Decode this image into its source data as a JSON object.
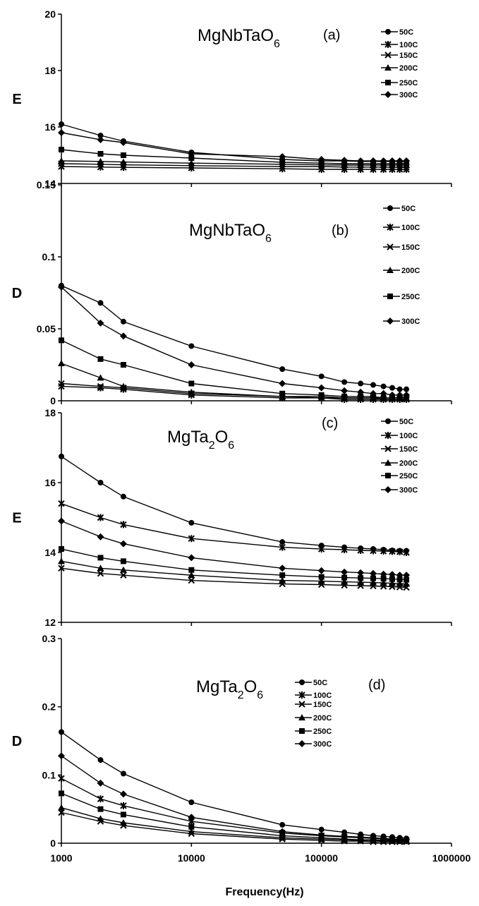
{
  "chart_data": [
    {
      "type": "line",
      "title": "MgNbTaO6",
      "title_parts": [
        "MgNbTaO",
        "6"
      ],
      "panel_label": "(a)",
      "ylabel": "E",
      "xlabel": "",
      "xscale": "log",
      "xlim": [
        1000,
        1000000
      ],
      "ylim": [
        14,
        20
      ],
      "yticks": [
        14,
        16,
        18,
        20
      ],
      "ytick_labels": [
        "14",
        "16",
        "18",
        "20"
      ],
      "x": [
        1000,
        2000,
        3000,
        10000,
        50000,
        100000,
        150000,
        200000,
        250000,
        300000,
        350000,
        400000,
        450000
      ],
      "series": [
        {
          "name": "50C",
          "marker": "circle",
          "values": [
            16.1,
            15.7,
            15.5,
            15.1,
            14.85,
            14.8,
            14.8,
            14.78,
            14.78,
            14.78,
            14.78,
            14.78,
            14.78
          ]
        },
        {
          "name": "100C",
          "marker": "asterisk",
          "values": [
            14.6,
            14.58,
            14.57,
            14.55,
            14.52,
            14.5,
            14.5,
            14.5,
            14.5,
            14.5,
            14.5,
            14.5,
            14.5
          ]
        },
        {
          "name": "150C",
          "marker": "x",
          "values": [
            14.7,
            14.68,
            14.66,
            14.63,
            14.6,
            14.6,
            14.58,
            14.58,
            14.58,
            14.58,
            14.58,
            14.58,
            14.58
          ]
        },
        {
          "name": "200C",
          "marker": "triangle",
          "values": [
            14.8,
            14.78,
            14.76,
            14.72,
            14.68,
            14.66,
            14.65,
            14.65,
            14.65,
            14.65,
            14.65,
            14.65,
            14.65
          ]
        },
        {
          "name": "250C",
          "marker": "square",
          "values": [
            15.2,
            15.05,
            15.0,
            14.9,
            14.75,
            14.72,
            14.7,
            14.7,
            14.7,
            14.7,
            14.7,
            14.7,
            14.7
          ]
        },
        {
          "name": "300C",
          "marker": "diamond",
          "values": [
            15.8,
            15.55,
            15.45,
            15.05,
            14.95,
            14.85,
            14.82,
            14.8,
            14.8,
            14.8,
            14.8,
            14.8,
            14.8
          ]
        }
      ],
      "legend": [
        "50C",
        "100C",
        "150C",
        "200C",
        "250C",
        "300C"
      ],
      "legend_position": "top-right"
    },
    {
      "type": "line",
      "title": "MgNbTaO6",
      "title_parts": [
        "MgNbTaO",
        "6"
      ],
      "panel_label": "(b)",
      "ylabel": "D",
      "xlabel": "",
      "xscale": "log",
      "xlim": [
        1000,
        1000000
      ],
      "ylim": [
        0,
        0.15
      ],
      "yticks": [
        0,
        0.05,
        0.1,
        0.15
      ],
      "ytick_labels": [
        "0",
        "0.05",
        "0.1",
        "0.15"
      ],
      "x": [
        1000,
        2000,
        3000,
        10000,
        50000,
        100000,
        150000,
        200000,
        250000,
        300000,
        350000,
        400000,
        450000
      ],
      "series": [
        {
          "name": "50C",
          "marker": "circle",
          "values": [
            0.08,
            0.068,
            0.055,
            0.038,
            0.022,
            0.017,
            0.013,
            0.012,
            0.011,
            0.01,
            0.009,
            0.008,
            0.008
          ]
        },
        {
          "name": "100C",
          "marker": "asterisk",
          "values": [
            0.01,
            0.009,
            0.008,
            0.004,
            0.002,
            0.002,
            0.001,
            0.001,
            0.001,
            0.001,
            0.001,
            0.001,
            0.001
          ]
        },
        {
          "name": "150C",
          "marker": "x",
          "values": [
            0.012,
            0.01,
            0.009,
            0.005,
            0.003,
            0.002,
            0.002,
            0.002,
            0.002,
            0.001,
            0.001,
            0.001,
            0.001
          ]
        },
        {
          "name": "200C",
          "marker": "triangle",
          "values": [
            0.026,
            0.016,
            0.01,
            0.006,
            0.003,
            0.003,
            0.002,
            0.002,
            0.002,
            0.002,
            0.002,
            0.002,
            0.002
          ]
        },
        {
          "name": "250C",
          "marker": "square",
          "values": [
            0.042,
            0.029,
            0.025,
            0.012,
            0.005,
            0.004,
            0.003,
            0.003,
            0.003,
            0.002,
            0.002,
            0.002,
            0.002
          ]
        },
        {
          "name": "300C",
          "marker": "diamond",
          "values": [
            0.079,
            0.054,
            0.045,
            0.025,
            0.012,
            0.009,
            0.007,
            0.006,
            0.005,
            0.005,
            0.004,
            0.004,
            0.004
          ]
        }
      ],
      "legend": [
        "50C",
        "100C",
        "150C",
        "200C",
        "250C",
        "300C"
      ],
      "legend_position": "top-right"
    },
    {
      "type": "line",
      "title": "MgTa2O6",
      "title_parts": [
        "MgTa",
        "2",
        "O",
        "6"
      ],
      "panel_label": "(c)",
      "ylabel": "E",
      "xlabel": "",
      "xscale": "log",
      "xlim": [
        1000,
        1000000
      ],
      "ylim": [
        12,
        18
      ],
      "yticks": [
        12,
        14,
        16,
        18
      ],
      "ytick_labels": [
        "12",
        "14",
        "16",
        "18"
      ],
      "x": [
        1000,
        2000,
        3000,
        10000,
        50000,
        100000,
        150000,
        200000,
        250000,
        300000,
        350000,
        400000,
        450000
      ],
      "series": [
        {
          "name": "50C",
          "marker": "circle",
          "values": [
            16.75,
            16.0,
            15.6,
            14.85,
            14.3,
            14.2,
            14.15,
            14.12,
            14.1,
            14.08,
            14.06,
            14.05,
            14.05
          ]
        },
        {
          "name": "100C",
          "marker": "asterisk",
          "values": [
            15.4,
            15.0,
            14.8,
            14.4,
            14.15,
            14.1,
            14.08,
            14.06,
            14.05,
            14.04,
            14.03,
            14.02,
            14.0
          ]
        },
        {
          "name": "150C",
          "marker": "x",
          "values": [
            13.55,
            13.4,
            13.35,
            13.2,
            13.1,
            13.08,
            13.06,
            13.05,
            13.04,
            13.03,
            13.02,
            13.01,
            13.0
          ]
        },
        {
          "name": "200C",
          "marker": "triangle",
          "values": [
            13.75,
            13.55,
            13.5,
            13.35,
            13.2,
            13.18,
            13.16,
            13.15,
            13.14,
            13.13,
            13.12,
            13.11,
            13.1
          ]
        },
        {
          "name": "250C",
          "marker": "square",
          "values": [
            14.1,
            13.85,
            13.75,
            13.5,
            13.35,
            13.3,
            13.28,
            13.27,
            13.26,
            13.25,
            13.24,
            13.23,
            13.22
          ]
        },
        {
          "name": "300C",
          "marker": "diamond",
          "values": [
            14.9,
            14.45,
            14.25,
            13.85,
            13.55,
            13.48,
            13.44,
            13.42,
            13.4,
            13.38,
            13.37,
            13.35,
            13.35
          ]
        }
      ],
      "legend": [
        "50C",
        "100C",
        "150C",
        "200C",
        "250C",
        "300C"
      ],
      "legend_position": "top-right"
    },
    {
      "type": "line",
      "title": "MgTa2O6",
      "title_parts": [
        "MgTa",
        "2",
        "O",
        "6"
      ],
      "panel_label": "(d)",
      "ylabel": "D",
      "xlabel": "Frequency(Hz)",
      "xscale": "log",
      "xlim": [
        1000,
        1000000
      ],
      "ylim": [
        0,
        0.3
      ],
      "yticks": [
        0,
        0.1,
        0.2,
        0.3
      ],
      "ytick_labels": [
        "0",
        "0.1",
        "0.2",
        "0.3"
      ],
      "xticks": [
        1000,
        10000,
        100000,
        1000000
      ],
      "xtick_labels": [
        "1000",
        "10000",
        "100000",
        "1000000"
      ],
      "x": [
        1000,
        2000,
        3000,
        10000,
        50000,
        100000,
        150000,
        200000,
        250000,
        300000,
        350000,
        400000,
        450000
      ],
      "series": [
        {
          "name": "50C",
          "marker": "circle",
          "values": [
            0.163,
            0.122,
            0.102,
            0.06,
            0.027,
            0.02,
            0.016,
            0.013,
            0.011,
            0.01,
            0.009,
            0.008,
            0.007
          ]
        },
        {
          "name": "100C",
          "marker": "asterisk",
          "values": [
            0.095,
            0.065,
            0.055,
            0.032,
            0.015,
            0.011,
            0.009,
            0.008,
            0.007,
            0.006,
            0.005,
            0.005,
            0.004
          ]
        },
        {
          "name": "150C",
          "marker": "x",
          "values": [
            0.045,
            0.032,
            0.026,
            0.014,
            0.006,
            0.004,
            0.003,
            0.003,
            0.002,
            0.002,
            0.002,
            0.002,
            0.002
          ]
        },
        {
          "name": "200C",
          "marker": "triangle",
          "values": [
            0.052,
            0.036,
            0.03,
            0.017,
            0.008,
            0.006,
            0.005,
            0.004,
            0.004,
            0.003,
            0.003,
            0.003,
            0.003
          ]
        },
        {
          "name": "250C",
          "marker": "square",
          "values": [
            0.073,
            0.05,
            0.042,
            0.024,
            0.011,
            0.008,
            0.006,
            0.005,
            0.005,
            0.004,
            0.004,
            0.004,
            0.003
          ]
        },
        {
          "name": "300C",
          "marker": "diamond",
          "values": [
            0.128,
            0.088,
            0.072,
            0.038,
            0.017,
            0.012,
            0.01,
            0.009,
            0.008,
            0.007,
            0.006,
            0.006,
            0.005
          ]
        }
      ],
      "legend": [
        "50C",
        "100C",
        "150C",
        "200C",
        "250C",
        "300C"
      ],
      "legend_position": "top-center"
    }
  ]
}
